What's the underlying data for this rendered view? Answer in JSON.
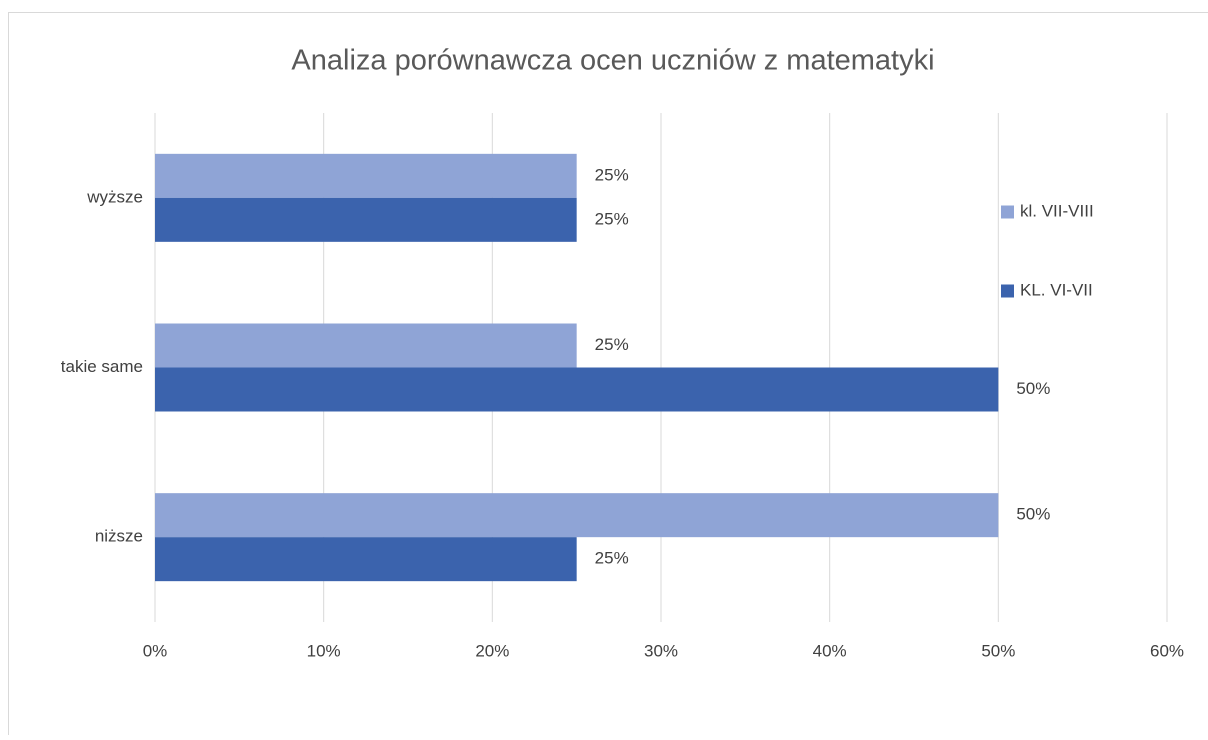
{
  "chart_data": {
    "type": "hbar",
    "title": "Analiza porównawcza ocen uczniów z matematyki",
    "categories": [
      "wyższe",
      "takie same",
      "niższe"
    ],
    "series": [
      {
        "name": "kl. VII-VIII",
        "color": "#8fa4d6",
        "values": [
          25,
          25,
          50
        ],
        "value_labels": [
          "25%",
          "25%",
          "50%"
        ]
      },
      {
        "name": "KL. VI-VII",
        "color": "#3b63ad",
        "values": [
          25,
          50,
          25
        ],
        "value_labels": [
          "25%",
          "50%",
          "25%"
        ]
      }
    ],
    "xlim": [
      0,
      60
    ],
    "xticks": [
      {
        "value": 0,
        "label": "0%"
      },
      {
        "value": 10,
        "label": "10%"
      },
      {
        "value": 20,
        "label": "20%"
      },
      {
        "value": 30,
        "label": "30%"
      },
      {
        "value": 40,
        "label": "40%"
      },
      {
        "value": 50,
        "label": "50%"
      },
      {
        "value": 60,
        "label": "60%"
      }
    ],
    "grid": true,
    "legend": "right"
  }
}
